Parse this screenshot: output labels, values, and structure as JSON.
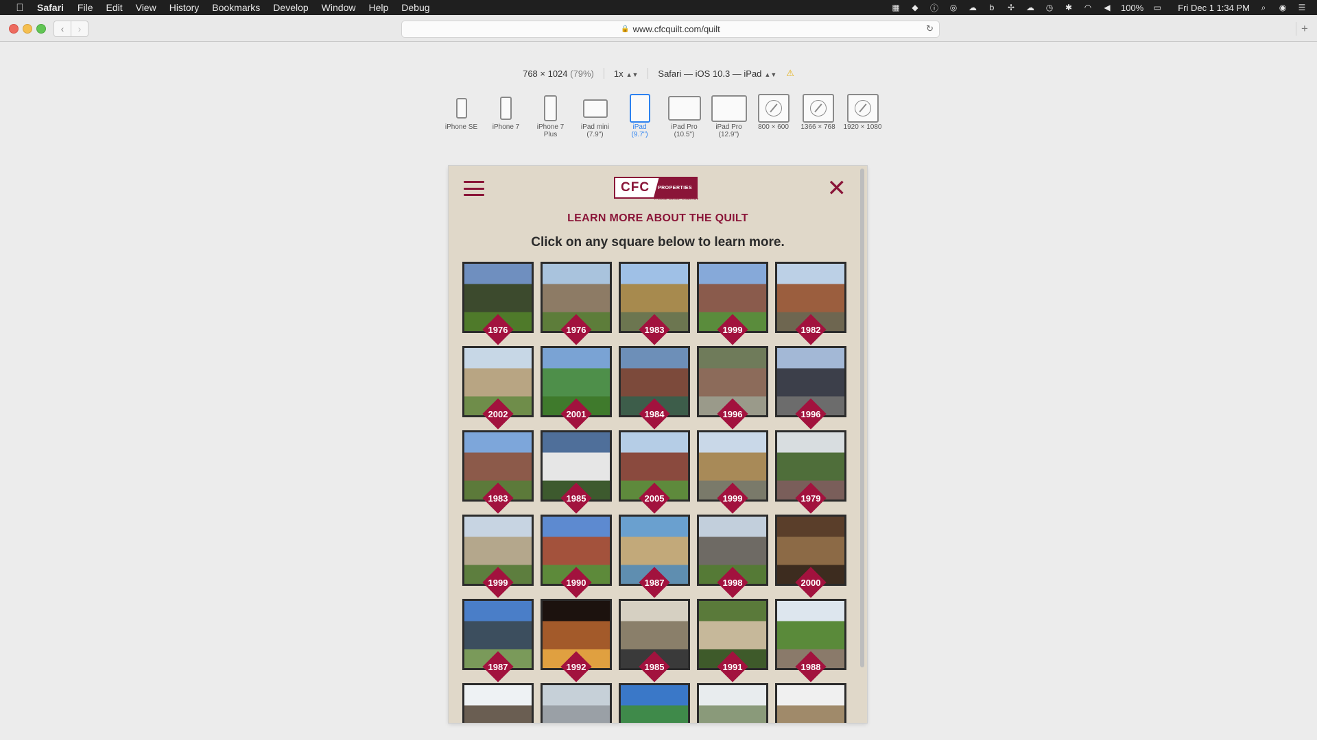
{
  "menubar": {
    "apple": "",
    "items": [
      "Safari",
      "File",
      "Edit",
      "View",
      "History",
      "Bookmarks",
      "Develop",
      "Window",
      "Help",
      "Debug"
    ],
    "battery": "100%",
    "clock": "Fri Dec 1  1:34 PM"
  },
  "browser": {
    "url": "www.cfcquilt.com/quilt"
  },
  "responsive": {
    "dimensions": "768 × 1024",
    "scale_pct": "(79%)",
    "pixel_ratio": "1x",
    "user_agent": "Safari — iOS 10.3 — iPad",
    "devices": [
      {
        "name": "iPhone SE",
        "selected": false
      },
      {
        "name": "iPhone 7",
        "selected": false
      },
      {
        "name": "iPhone 7\nPlus",
        "selected": false
      },
      {
        "name": "iPad mini\n(7.9\")",
        "selected": false
      },
      {
        "name": "iPad\n(9.7\")",
        "selected": true
      },
      {
        "name": "iPad Pro\n(10.5\")",
        "selected": false
      },
      {
        "name": "iPad Pro\n(12.9\")",
        "selected": false
      },
      {
        "name": "800 × 600",
        "selected": false
      },
      {
        "name": "1366 × 768",
        "selected": false
      },
      {
        "name": "1920 × 1080",
        "selected": false
      }
    ]
  },
  "site": {
    "logo_text": "CFC",
    "logo_properties": "PROPERTIES",
    "logo_tagline": "A COOK GROUP COMPANY",
    "heading": "LEARN MORE ABOUT THE QUILT",
    "subheading": "Click on any square below to learn more.",
    "tiles": [
      {
        "year": "1976",
        "colors": [
          "#6f8fbf",
          "#3c4a2d",
          "#4f7a2a"
        ]
      },
      {
        "year": "1976",
        "colors": [
          "#a9c3dd",
          "#8d7b65",
          "#5d7d3a"
        ]
      },
      {
        "year": "1983",
        "colors": [
          "#9fc0e6",
          "#a78a4e",
          "#6c7650"
        ]
      },
      {
        "year": "1999",
        "colors": [
          "#86a9d9",
          "#8a5b4c",
          "#5a8c3c"
        ]
      },
      {
        "year": "1982",
        "colors": [
          "#bcd0e6",
          "#9b5e3e",
          "#6e6650"
        ]
      },
      {
        "year": "2002",
        "colors": [
          "#c7d7e6",
          "#b8a583",
          "#6f8d4a"
        ]
      },
      {
        "year": "2001",
        "colors": [
          "#7aa3d4",
          "#4e8f4a",
          "#3f7a2c"
        ]
      },
      {
        "year": "1984",
        "colors": [
          "#6d8fb8",
          "#7c4a3b",
          "#3d5d4a"
        ]
      },
      {
        "year": "1996",
        "colors": [
          "#6f7b5a",
          "#8c6b5a",
          "#9a9a8a"
        ]
      },
      {
        "year": "1996",
        "colors": [
          "#a3b8d6",
          "#3c3f4a",
          "#6c6c6c"
        ]
      },
      {
        "year": "1983",
        "colors": [
          "#7da6da",
          "#8c5a4a",
          "#5c7a3a"
        ]
      },
      {
        "year": "1985",
        "colors": [
          "#4f6f9a",
          "#e6e6e6",
          "#3d5a2e"
        ]
      },
      {
        "year": "2005",
        "colors": [
          "#b5cde6",
          "#8a4a3e",
          "#5e8a3c"
        ]
      },
      {
        "year": "1999",
        "colors": [
          "#c9d8e8",
          "#a88a58",
          "#7a7a6a"
        ]
      },
      {
        "year": "1979",
        "colors": [
          "#d8dde0",
          "#4f6e3a",
          "#7a5e5a"
        ]
      },
      {
        "year": "1999",
        "colors": [
          "#c7d4e2",
          "#b4a78c",
          "#5d7e3e"
        ]
      },
      {
        "year": "1990",
        "colors": [
          "#5d8ad0",
          "#a3523c",
          "#5d8a3a"
        ]
      },
      {
        "year": "1987",
        "colors": [
          "#6aa0cf",
          "#c2a97a",
          "#5f8eb0"
        ]
      },
      {
        "year": "1998",
        "colors": [
          "#c2cfdc",
          "#6e6a64",
          "#557a36"
        ]
      },
      {
        "year": "2000",
        "colors": [
          "#5a3e2a",
          "#8c6a46",
          "#3d2c1f"
        ]
      },
      {
        "year": "1987",
        "colors": [
          "#4a7ec8",
          "#3c4e5e",
          "#7a9a5a"
        ]
      },
      {
        "year": "1992",
        "colors": [
          "#1c120e",
          "#a35a2a",
          "#e0a040"
        ]
      },
      {
        "year": "1985",
        "colors": [
          "#d6d0c2",
          "#8a7f6a",
          "#3a3a3a"
        ]
      },
      {
        "year": "1991",
        "colors": [
          "#5a7a3a",
          "#c6b89a",
          "#3e5a2a"
        ]
      },
      {
        "year": "1988",
        "colors": [
          "#dde6ee",
          "#5a8a3a",
          "#8a7a6a"
        ]
      },
      {
        "year": "",
        "colors": [
          "#eef2f4",
          "#6a5e52",
          "#8a8a8a"
        ]
      },
      {
        "year": "",
        "colors": [
          "#c6d0d8",
          "#9aa0a6",
          "#7a7a7a"
        ]
      },
      {
        "year": "",
        "colors": [
          "#3a78c8",
          "#3f8a4a",
          "#a0a0a0"
        ]
      },
      {
        "year": "",
        "colors": [
          "#e8ecee",
          "#8a9a7a",
          "#6a6a6a"
        ]
      },
      {
        "year": "",
        "colors": [
          "#f0f0f0",
          "#a08a6a",
          "#7a6a5a"
        ]
      }
    ]
  }
}
